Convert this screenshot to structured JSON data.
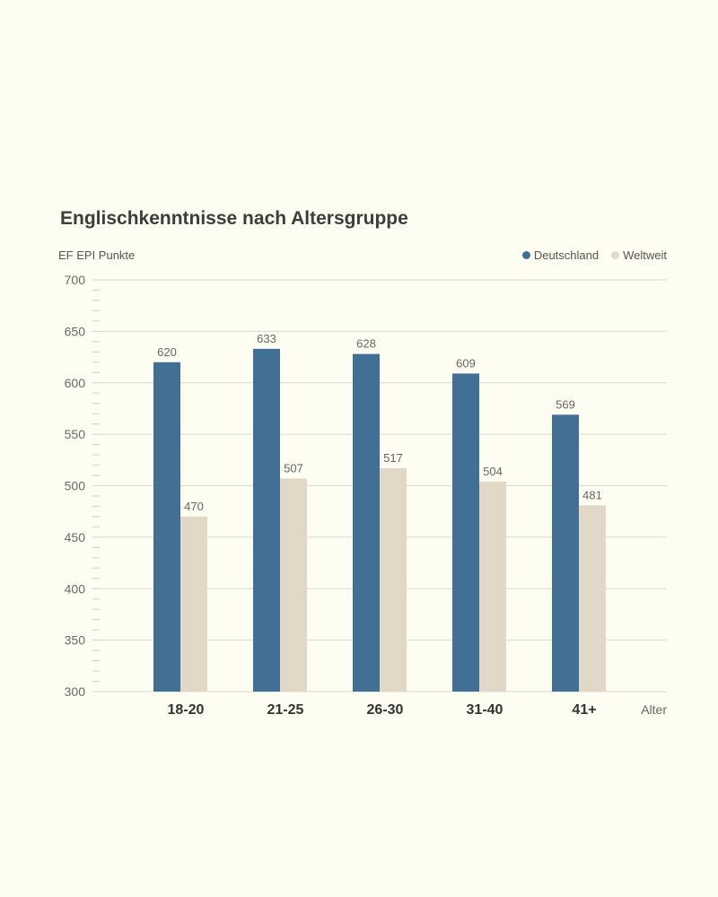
{
  "chart_data": {
    "type": "bar",
    "title": "Englischkenntnisse nach Altersgruppe",
    "ylabel": "EF EPI Punkte",
    "xlabel": "Alter",
    "categories": [
      "18-20",
      "21-25",
      "26-30",
      "31-40",
      "41+"
    ],
    "series": [
      {
        "name": "Deutschland",
        "color": "#426f94",
        "values": [
          620,
          633,
          628,
          609,
          569
        ]
      },
      {
        "name": "Weltweit",
        "color": "#e2d8c8",
        "values": [
          470,
          507,
          517,
          504,
          481
        ]
      }
    ],
    "ylim": [
      300,
      700
    ],
    "yticks": [
      300,
      350,
      400,
      450,
      500,
      550,
      600,
      650,
      700
    ],
    "grid": true,
    "legend_position": "top-right"
  }
}
